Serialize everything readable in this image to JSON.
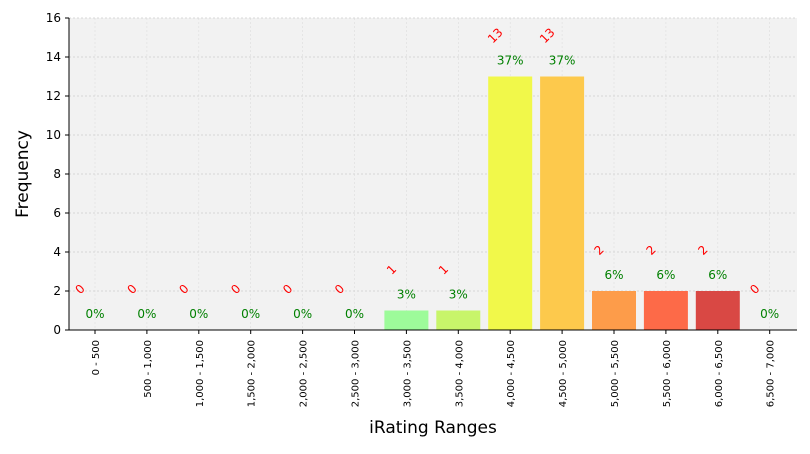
{
  "chart_data": {
    "type": "bar",
    "xlabel": "iRating Ranges",
    "ylabel": "Frequency",
    "ylim": [
      0,
      16
    ],
    "yticks": [
      0,
      2,
      4,
      6,
      8,
      10,
      12,
      14,
      16
    ],
    "grid": true,
    "categories": [
      "0 - 500",
      "500 - 1,000",
      "1,000 - 1,500",
      "1,500 - 2,000",
      "2,000 - 2,500",
      "2,500 - 3,000",
      "3,000 - 3,500",
      "3,500 - 4,000",
      "4,000 - 4,500",
      "4,500 - 5,000",
      "5,000 - 5,500",
      "5,500 - 6,000",
      "6,000 - 6,500",
      "6,500 - 7,000"
    ],
    "values": [
      0,
      0,
      0,
      0,
      0,
      0,
      1,
      1,
      13,
      13,
      2,
      2,
      2,
      0
    ],
    "count_labels": [
      "0",
      "0",
      "0",
      "0",
      "0",
      "0",
      "1",
      "1",
      "13",
      "13",
      "2",
      "2",
      "2",
      "0"
    ],
    "percent_labels": [
      "0%",
      "0%",
      "0%",
      "0%",
      "0%",
      "0%",
      "3%",
      "3%",
      "37%",
      "37%",
      "6%",
      "6%",
      "6%",
      "0%"
    ],
    "bar_colors": [
      "#9dfb9a",
      "#9dfb9a",
      "#9dfb9a",
      "#9dfb9a",
      "#9dfb9a",
      "#9dfb9a",
      "#9dfb9a",
      "#c8f56a",
      "#f1f84a",
      "#fdc94c",
      "#fd9c4a",
      "#fd6a48",
      "#d94844",
      "#d94844"
    ],
    "colors": {
      "plot_bg": "#f2f2f2",
      "count_label": "#ff0000",
      "percent_label": "#008000",
      "grid": "#cccccc"
    }
  }
}
